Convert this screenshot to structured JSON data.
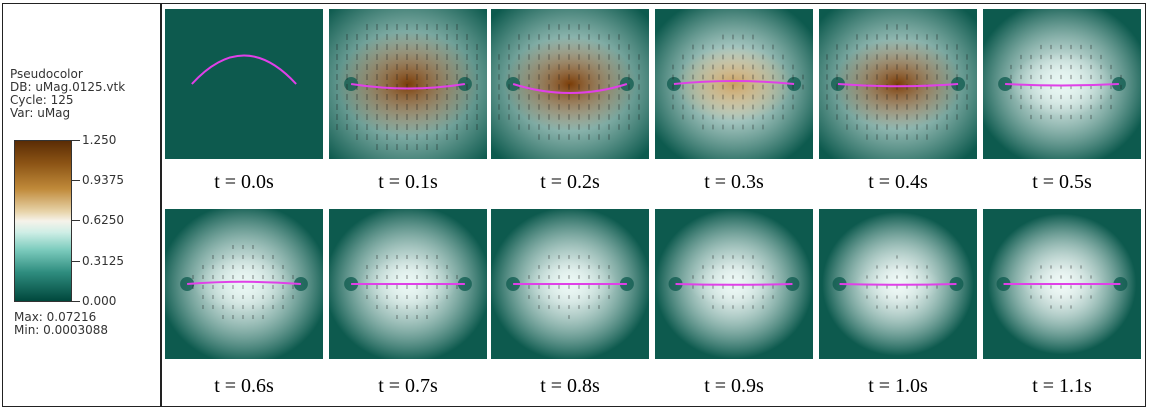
{
  "legend": {
    "title": "Pseudocolor",
    "db": "DB: uMag.0125.vtk",
    "cycle": "Cycle: 125",
    "var": "Var: uMag",
    "ticks": [
      "1.250",
      "0.9375",
      "0.6250",
      "0.3125",
      "0.000"
    ],
    "max": "Max:  0.07216",
    "min": "Min:  0.0003088"
  },
  "frames": [
    {
      "label": "t = 0.0s",
      "intensity": 0.0,
      "lobe_color": "none",
      "curve_sag": -0.38,
      "curve_halfwidth": 0.33
    },
    {
      "label": "t = 0.1s",
      "intensity": 1.0,
      "lobe_color": "brown",
      "curve_sag": 0.06,
      "curve_halfwidth": 0.36
    },
    {
      "label": "t = 0.2s",
      "intensity": 0.85,
      "lobe_color": "brown",
      "curve_sag": 0.12,
      "curve_halfwidth": 0.36
    },
    {
      "label": "t = 0.3s",
      "intensity": 0.6,
      "lobe_color": "tan",
      "curve_sag": -0.04,
      "curve_halfwidth": 0.38
    },
    {
      "label": "t = 0.4s",
      "intensity": 0.8,
      "lobe_color": "brown",
      "curve_sag": 0.03,
      "curve_halfwidth": 0.38
    },
    {
      "label": "t = 0.5s",
      "intensity": 0.45,
      "lobe_color": "light",
      "curve_sag": 0.02,
      "curve_halfwidth": 0.36
    },
    {
      "label": "t = 0.6s",
      "intensity": 0.35,
      "lobe_color": "light",
      "curve_sag": -0.03,
      "curve_halfwidth": 0.36
    },
    {
      "label": "t = 0.7s",
      "intensity": 0.3,
      "lobe_color": "light",
      "curve_sag": 0.0,
      "curve_halfwidth": 0.36
    },
    {
      "label": "t = 0.8s",
      "intensity": 0.25,
      "lobe_color": "light",
      "curve_sag": 0.0,
      "curve_halfwidth": 0.36
    },
    {
      "label": "t = 0.9s",
      "intensity": 0.2,
      "lobe_color": "light",
      "curve_sag": 0.01,
      "curve_halfwidth": 0.37
    },
    {
      "label": "t = 1.0s",
      "intensity": 0.12,
      "lobe_color": "light",
      "curve_sag": 0.01,
      "curve_halfwidth": 0.37
    },
    {
      "label": "t = 1.1s",
      "intensity": 0.08,
      "lobe_color": "light",
      "curve_sag": 0.0,
      "curve_halfwidth": 0.37
    }
  ],
  "colors": {
    "background_teal": "#0d5a4e",
    "curve_magenta": "#e040e8",
    "lobe_brown": "#7a3d08",
    "lobe_tan": "#c9a060",
    "light_teal": "#e6f6f2"
  }
}
